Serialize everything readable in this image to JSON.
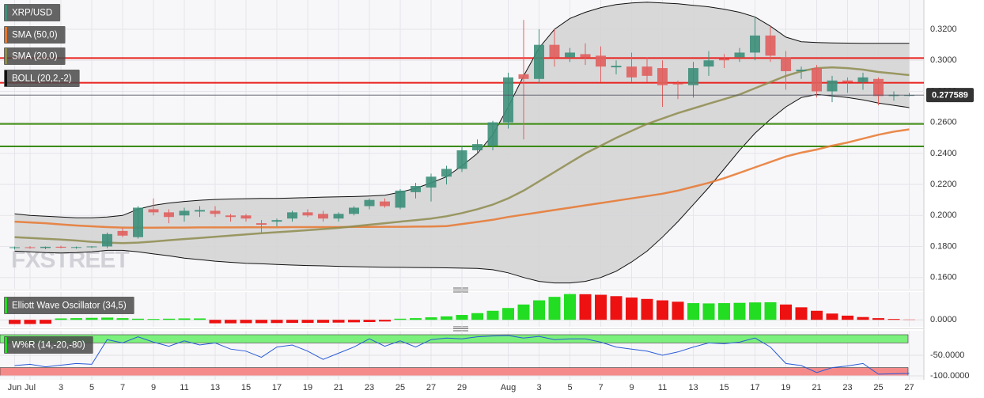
{
  "chart_data": [
    {
      "type": "candlestick",
      "name": "XRP/USD",
      "watermark": "FXSTREET",
      "categories": [
        "Jun",
        "Jul",
        null,
        "3",
        null,
        "5",
        null,
        "7",
        null,
        "9",
        null,
        "11",
        null,
        "13",
        null,
        "15",
        null,
        "17",
        null,
        "19",
        null,
        "21",
        null,
        "23",
        null,
        "25",
        null,
        "27",
        null,
        "29",
        null,
        null,
        "Aug",
        null,
        "3",
        null,
        "5",
        null,
        "7",
        null,
        "9",
        null,
        "11",
        null,
        "13",
        null,
        "15",
        null,
        "17",
        null,
        "19",
        null,
        "21",
        null,
        "23",
        null,
        "25",
        null,
        "27"
      ],
      "open": [
        0.179,
        0.1795,
        0.179,
        0.1798,
        0.1792,
        0.1796,
        0.18,
        0.19,
        0.186,
        0.204,
        0.202,
        0.2,
        0.2025,
        0.203,
        0.2,
        0.2,
        0.195,
        0.196,
        0.198,
        0.202,
        0.201,
        0.198,
        0.201,
        0.206,
        0.209,
        0.205,
        0.215,
        0.218,
        0.225,
        0.23,
        0.242,
        0.245,
        0.26,
        0.291,
        0.288,
        0.31,
        0.302,
        0.304,
        0.303,
        0.2955,
        0.296,
        0.296,
        0.295,
        0.285,
        0.284,
        0.296,
        0.301,
        0.302,
        0.305,
        0.316,
        0.302,
        0.293,
        0.295,
        0.28,
        0.287,
        0.286,
        0.288,
        0.277,
        0.2776
      ],
      "high": [
        0.18,
        0.1802,
        0.18,
        0.1805,
        0.18,
        0.1802,
        0.189,
        0.192,
        0.206,
        0.211,
        0.204,
        0.205,
        0.206,
        0.206,
        0.201,
        0.201,
        0.197,
        0.198,
        0.203,
        0.204,
        0.203,
        0.202,
        0.206,
        0.211,
        0.211,
        0.217,
        0.221,
        0.227,
        0.232,
        0.245,
        0.249,
        0.261,
        0.292,
        0.326,
        0.32,
        0.32,
        0.308,
        0.311,
        0.309,
        0.3,
        0.305,
        0.302,
        0.3,
        0.287,
        0.299,
        0.306,
        0.304,
        0.308,
        0.328,
        0.322,
        0.306,
        0.296,
        0.297,
        0.29,
        0.289,
        0.292,
        0.289,
        0.28,
        0.279
      ],
      "low": [
        0.178,
        0.1785,
        0.1782,
        0.1788,
        0.1785,
        0.179,
        0.179,
        0.186,
        0.185,
        0.2,
        0.195,
        0.196,
        0.199,
        0.199,
        0.196,
        0.196,
        0.189,
        0.193,
        0.196,
        0.199,
        0.196,
        0.196,
        0.2,
        0.204,
        0.205,
        0.204,
        0.211,
        0.209,
        0.22,
        0.228,
        0.24,
        0.242,
        0.256,
        0.249,
        0.285,
        0.296,
        0.299,
        0.297,
        0.286,
        0.291,
        0.286,
        0.286,
        0.27,
        0.275,
        0.276,
        0.29,
        0.295,
        0.299,
        0.3,
        0.299,
        0.281,
        0.288,
        0.276,
        0.273,
        0.279,
        0.281,
        0.271,
        0.274,
        0.2768
      ],
      "close": [
        0.1795,
        0.179,
        0.1798,
        0.1792,
        0.1796,
        0.18,
        0.188,
        0.187,
        0.205,
        0.202,
        0.199,
        0.203,
        0.2035,
        0.201,
        0.199,
        0.198,
        0.194,
        0.197,
        0.202,
        0.2,
        0.198,
        0.201,
        0.205,
        0.21,
        0.206,
        0.216,
        0.219,
        0.225,
        0.23,
        0.242,
        0.246,
        0.26,
        0.289,
        0.288,
        0.31,
        0.302,
        0.305,
        0.302,
        0.296,
        0.2965,
        0.289,
        0.29,
        0.284,
        0.2845,
        0.295,
        0.3,
        0.3,
        0.305,
        0.316,
        0.303,
        0.293,
        0.294,
        0.28,
        0.287,
        0.286,
        0.289,
        0.277,
        0.2778,
        0.2776
      ],
      "up_color": "#3d8f7a",
      "down_color": "#e0605e",
      "color": "#3d8f7a",
      "series": [
        {
          "name": "SMA (50,0)",
          "color": "#e8772e",
          "values": [
            0.196,
            0.1955,
            0.195,
            0.1942,
            0.1935,
            0.193,
            0.1925,
            0.1922,
            0.1921,
            0.1921,
            0.1922,
            0.1922,
            0.1923,
            0.1923,
            0.1923,
            0.1924,
            0.1924,
            0.1924,
            0.1925,
            0.1925,
            0.1925,
            0.1925,
            0.1926,
            0.1926,
            0.1927,
            0.1927,
            0.1928,
            0.1929,
            0.1931,
            0.1945,
            0.1958,
            0.1972,
            0.199,
            0.2005,
            0.202,
            0.2035,
            0.205,
            0.2065,
            0.208,
            0.2095,
            0.211,
            0.2125,
            0.214,
            0.216,
            0.2185,
            0.221,
            0.224,
            0.2275,
            0.231,
            0.2345,
            0.238,
            0.2405,
            0.2425,
            0.245,
            0.247,
            0.2495,
            0.252,
            0.254,
            0.2555
          ]
        },
        {
          "name": "SMA (20,0)",
          "color": "#8e8c4c",
          "values": [
            0.186,
            0.1855,
            0.185,
            0.1845,
            0.1838,
            0.183,
            0.1825,
            0.1822,
            0.1825,
            0.1832,
            0.184,
            0.1848,
            0.1855,
            0.1862,
            0.187,
            0.1878,
            0.1885,
            0.1892,
            0.1898,
            0.1905,
            0.1912,
            0.192,
            0.193,
            0.194,
            0.195,
            0.196,
            0.197,
            0.198,
            0.1995,
            0.2015,
            0.204,
            0.207,
            0.211,
            0.216,
            0.222,
            0.228,
            0.234,
            0.24,
            0.245,
            0.25,
            0.2545,
            0.259,
            0.2625,
            0.266,
            0.269,
            0.272,
            0.275,
            0.278,
            0.282,
            0.286,
            0.29,
            0.293,
            0.295,
            0.2955,
            0.295,
            0.294,
            0.2925,
            0.2915,
            0.2905
          ]
        }
      ],
      "bands": {
        "name": "BOLL (20,2,-2)",
        "color": "#111111",
        "fill": "#d2d2d4",
        "upper": [
          0.201,
          0.2,
          0.1995,
          0.199,
          0.1985,
          0.1985,
          0.199,
          0.2,
          0.204,
          0.2065,
          0.208,
          0.209,
          0.2098,
          0.2103,
          0.2106,
          0.2108,
          0.211,
          0.211,
          0.2112,
          0.2115,
          0.2118,
          0.212,
          0.2122,
          0.2125,
          0.213,
          0.215,
          0.2175,
          0.221,
          0.225,
          0.232,
          0.24,
          0.252,
          0.27,
          0.29,
          0.308,
          0.32,
          0.327,
          0.331,
          0.334,
          0.336,
          0.337,
          0.3375,
          0.337,
          0.3365,
          0.3355,
          0.3345,
          0.333,
          0.331,
          0.328,
          0.322,
          0.315,
          0.312,
          0.3115,
          0.3112,
          0.3111,
          0.311,
          0.311,
          0.311,
          0.311
        ],
        "lower": [
          0.177,
          0.1765,
          0.176,
          0.1758,
          0.176,
          0.1765,
          0.1775,
          0.1775,
          0.1765,
          0.1752,
          0.174,
          0.1725,
          0.1715,
          0.1705,
          0.1698,
          0.1692,
          0.1688,
          0.1684,
          0.168,
          0.1677,
          0.1675,
          0.1672,
          0.167,
          0.1668,
          0.1666,
          0.1665,
          0.1664,
          0.1663,
          0.1662,
          0.166,
          0.1658,
          0.165,
          0.163,
          0.16,
          0.1575,
          0.1565,
          0.1565,
          0.1575,
          0.16,
          0.164,
          0.17,
          0.177,
          0.186,
          0.196,
          0.207,
          0.218,
          0.23,
          0.242,
          0.253,
          0.262,
          0.27,
          0.276,
          0.278,
          0.277,
          0.276,
          0.2745,
          0.2725,
          0.271,
          0.2695
        ]
      },
      "horizontal_lines": [
        {
          "value": 0.3015,
          "color": "#e8201c"
        },
        {
          "value": 0.2855,
          "color": "#e8201c"
        },
        {
          "value": 0.259,
          "color": "#3a8a0c"
        },
        {
          "value": 0.2445,
          "color": "#3a8a0c"
        }
      ],
      "last_price": 0.277589,
      "ylim": [
        0.1527,
        0.3389
      ],
      "yticks": [
        {
          "value": 0.16,
          "label": "0.1600"
        },
        {
          "value": 0.18,
          "label": "0.1800"
        },
        {
          "value": 0.2,
          "label": "0.2000"
        },
        {
          "value": 0.22,
          "label": "0.2200"
        },
        {
          "value": 0.24,
          "label": "0.2400"
        },
        {
          "value": 0.26,
          "label": "0.2600"
        },
        {
          "value": 0.28,
          "label": "0.2800"
        },
        {
          "value": 0.3,
          "label": "0.3000"
        },
        {
          "value": 0.32,
          "label": "0.3200"
        }
      ],
      "grid": true
    },
    {
      "type": "bar",
      "name": "Elliott Wave Oscillator (34,5)",
      "values": [
        -0.003,
        -0.003,
        -0.0028,
        0.001,
        0.0012,
        0.0014,
        0.0016,
        0.0012,
        0.0008,
        0.0006,
        0.0008,
        0.001,
        0.001,
        -0.0025,
        -0.0025,
        -0.0024,
        -0.0024,
        -0.0023,
        -0.0022,
        -0.0022,
        -0.0021,
        -0.002,
        -0.0018,
        -0.0016,
        -0.0012,
        0.0008,
        0.0012,
        0.0018,
        0.0025,
        0.0035,
        0.0048,
        0.0065,
        0.0085,
        0.011,
        0.014,
        0.0165,
        0.0185,
        0.0184,
        0.018,
        0.017,
        0.016,
        0.015,
        0.014,
        0.013,
        0.012,
        0.0118,
        0.012,
        0.0122,
        0.0125,
        0.0126,
        0.011,
        0.009,
        0.0065,
        0.0045,
        0.003,
        0.002,
        0.0012,
        0.0006,
        0.0002
      ],
      "colors": [
        "#ee1111",
        "#ee1111",
        "#ee1111",
        "#22dd22",
        "#22dd22",
        "#22dd22",
        "#22dd22",
        "#22dd22",
        "#22dd22",
        "#22dd22",
        "#22dd22",
        "#22dd22",
        "#22dd22",
        "#ee1111",
        "#ee1111",
        "#ee1111",
        "#ee1111",
        "#ee1111",
        "#ee1111",
        "#ee1111",
        "#ee1111",
        "#ee1111",
        "#ee1111",
        "#ee1111",
        "#ee1111",
        "#22dd22",
        "#22dd22",
        "#22dd22",
        "#22dd22",
        "#22dd22",
        "#22dd22",
        "#22dd22",
        "#22dd22",
        "#22dd22",
        "#22dd22",
        "#22dd22",
        "#22dd22",
        "#ee1111",
        "#ee1111",
        "#ee1111",
        "#ee1111",
        "#ee1111",
        "#ee1111",
        "#ee1111",
        "#22dd22",
        "#22dd22",
        "#22dd22",
        "#22dd22",
        "#22dd22",
        "#22dd22",
        "#ee1111",
        "#ee1111",
        "#ee1111",
        "#ee1111",
        "#ee1111",
        "#ee1111",
        "#ee1111",
        "#ee1111",
        "#ee1111"
      ],
      "ylim": [
        -0.005,
        0.02
      ],
      "yticks": [
        {
          "value": 0,
          "label": "0.0000"
        }
      ]
    },
    {
      "type": "line",
      "name": "W%R (14,-20,-80)",
      "color": "#2a5ad8",
      "values": [
        -75,
        -72,
        -78,
        -74,
        -70,
        -72,
        -12,
        -20,
        -5,
        -18,
        -28,
        -15,
        -25,
        -20,
        -35,
        -40,
        -55,
        -30,
        -25,
        -40,
        -60,
        -45,
        -30,
        -10,
        -28,
        -15,
        -30,
        -12,
        -8,
        -10,
        -5,
        -3,
        -2,
        -8,
        -4,
        -12,
        -10,
        -10,
        -18,
        -30,
        -35,
        -40,
        -50,
        -42,
        -30,
        -20,
        -22,
        -18,
        -8,
        -30,
        -70,
        -75,
        -92,
        -80,
        -76,
        -70,
        -96,
        -95,
        -94
      ],
      "bands": [
        {
          "from": -20,
          "to": 0,
          "color": "#7cf07c"
        },
        {
          "from": -100,
          "to": -80,
          "color": "#f48a8a"
        }
      ],
      "ylim": [
        -100,
        0
      ],
      "yticks": [
        {
          "value": -50,
          "label": "-50.0000"
        },
        {
          "value": -100,
          "label": "-100.0000"
        }
      ]
    }
  ]
}
